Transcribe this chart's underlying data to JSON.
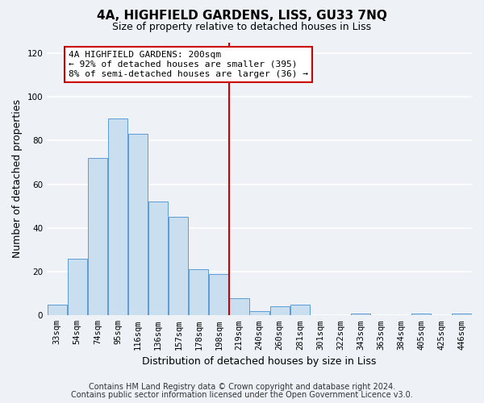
{
  "title": "4A, HIGHFIELD GARDENS, LISS, GU33 7NQ",
  "subtitle": "Size of property relative to detached houses in Liss",
  "xlabel": "Distribution of detached houses by size in Liss",
  "ylabel": "Number of detached properties",
  "footnote1": "Contains HM Land Registry data © Crown copyright and database right 2024.",
  "footnote2": "Contains public sector information licensed under the Open Government Licence v3.0.",
  "bar_labels": [
    "33sqm",
    "54sqm",
    "74sqm",
    "95sqm",
    "116sqm",
    "136sqm",
    "157sqm",
    "178sqm",
    "198sqm",
    "219sqm",
    "240sqm",
    "260sqm",
    "281sqm",
    "301sqm",
    "322sqm",
    "343sqm",
    "363sqm",
    "384sqm",
    "405sqm",
    "425sqm",
    "446sqm"
  ],
  "bar_values": [
    5,
    26,
    72,
    90,
    83,
    52,
    45,
    21,
    19,
    8,
    2,
    4,
    5,
    0,
    0,
    1,
    0,
    0,
    1,
    0,
    1
  ],
  "bar_color": "#c9dff0",
  "bar_edge_color": "#5b9bd5",
  "vline_x": 8.5,
  "vline_color": "#cc0000",
  "annotation_title": "4A HIGHFIELD GARDENS: 200sqm",
  "annotation_line1": "← 92% of detached houses are smaller (395)",
  "annotation_line2": "8% of semi-detached houses are larger (36) →",
  "annotation_box_color": "#cc0000",
  "annotation_bg": "#ffffff",
  "ylim": [
    0,
    125
  ],
  "yticks": [
    0,
    20,
    40,
    60,
    80,
    100,
    120
  ],
  "background_color": "#eef2f7",
  "grid_color": "#ffffff",
  "title_fontsize": 11,
  "subtitle_fontsize": 9,
  "axis_label_fontsize": 9,
  "tick_fontsize": 7.5,
  "annotation_fontsize": 8
}
